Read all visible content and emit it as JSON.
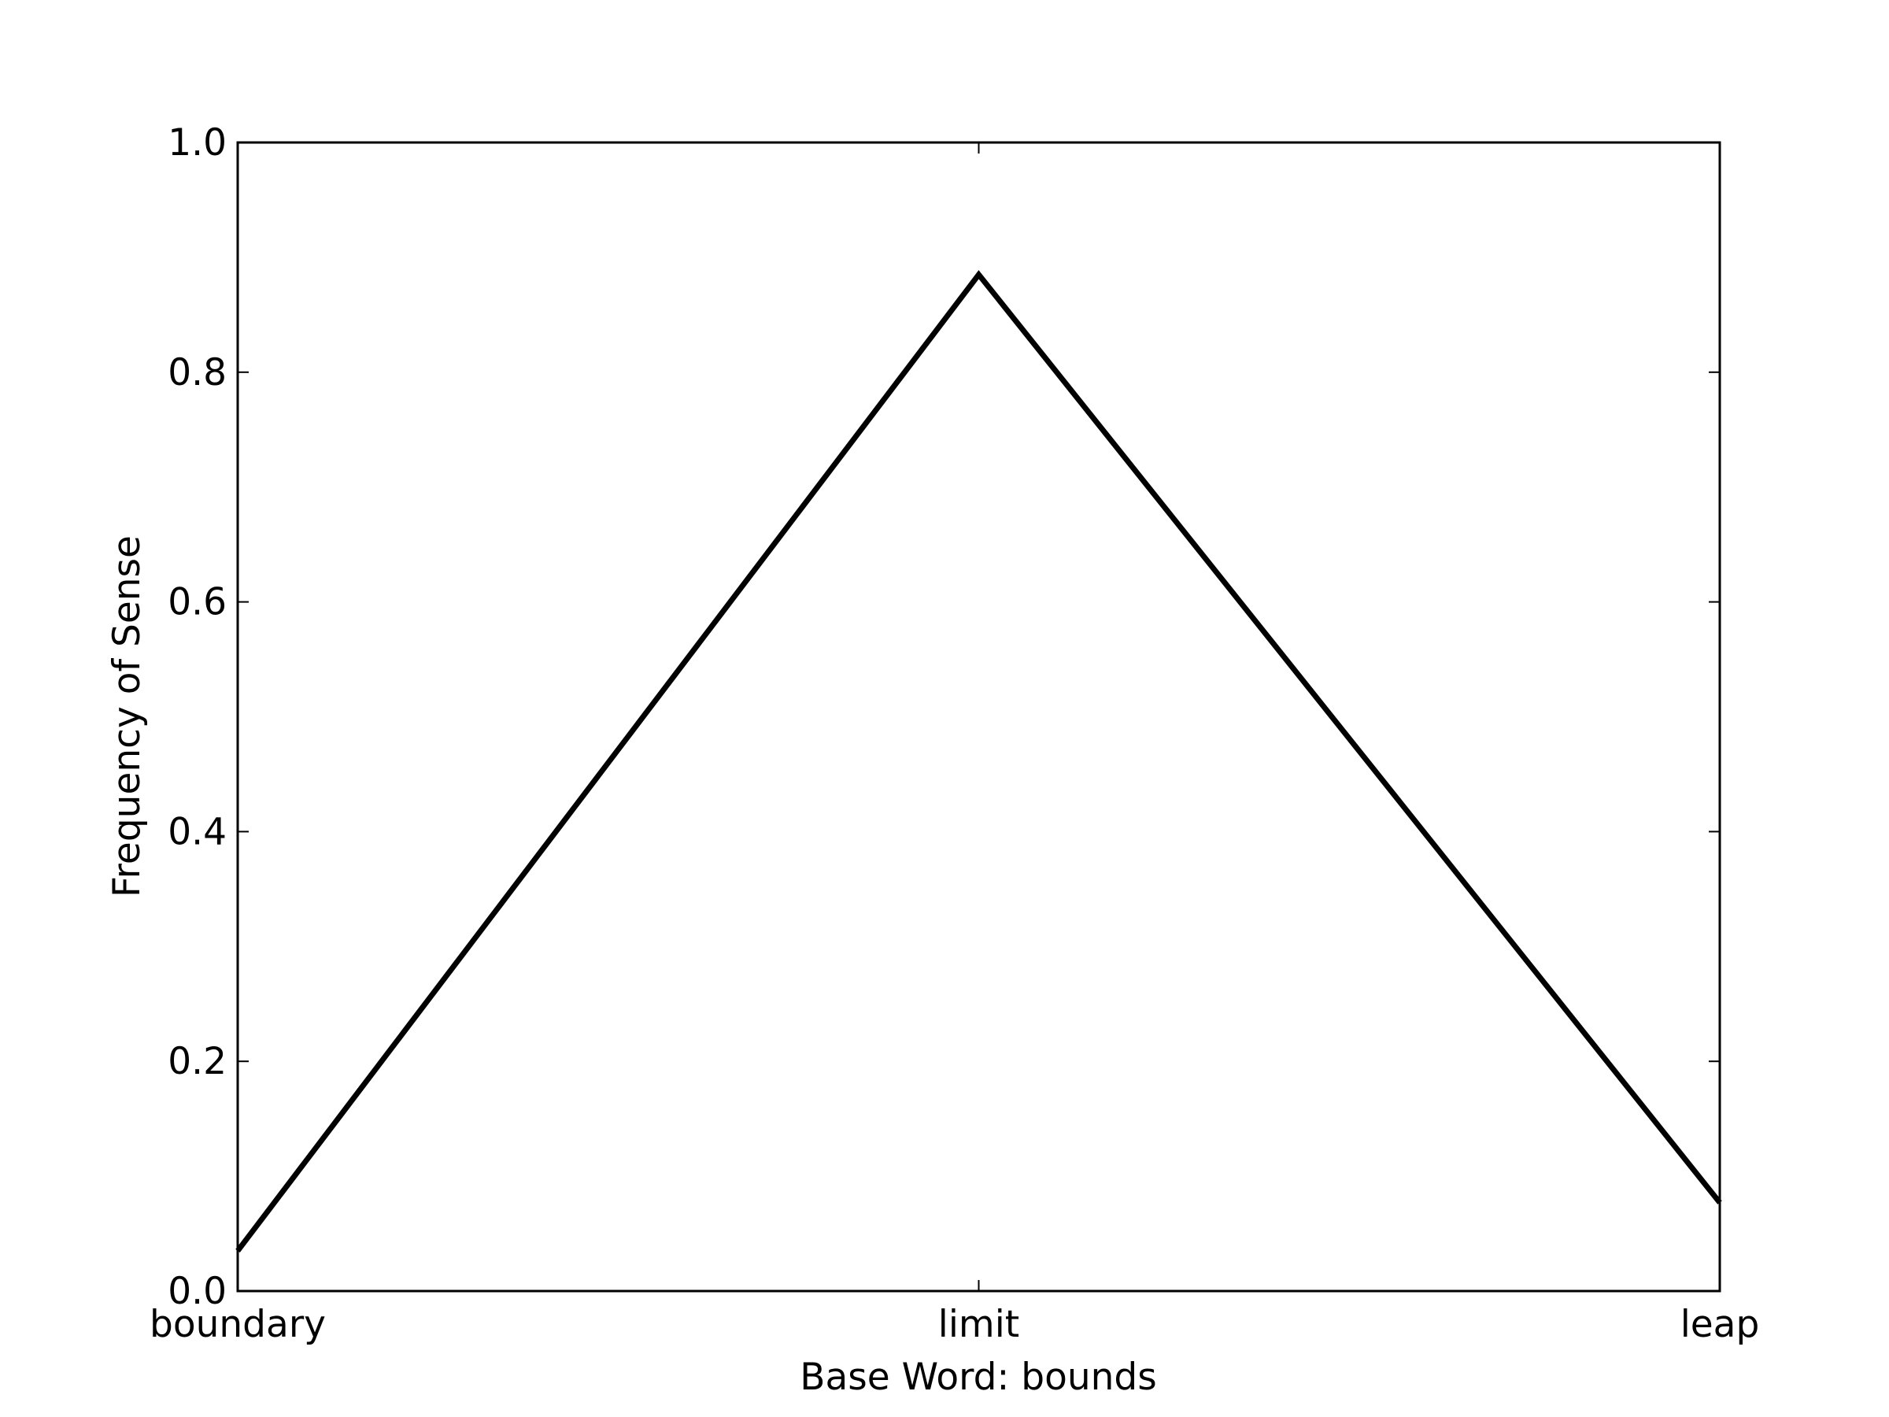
{
  "chart_data": {
    "type": "line",
    "categories": [
      "boundary",
      "limit",
      "leap"
    ],
    "series": [
      {
        "values": [
          0.035,
          0.885,
          0.077
        ]
      }
    ],
    "xlabel": "Base Word: bounds",
    "ylabel": "Frequency of Sense",
    "ylim": [
      0.0,
      1.0
    ],
    "yticks": [
      "0.0",
      "0.2",
      "0.4",
      "0.6",
      "0.8",
      "1.0"
    ],
    "grid": false,
    "line_color": "#000000"
  }
}
